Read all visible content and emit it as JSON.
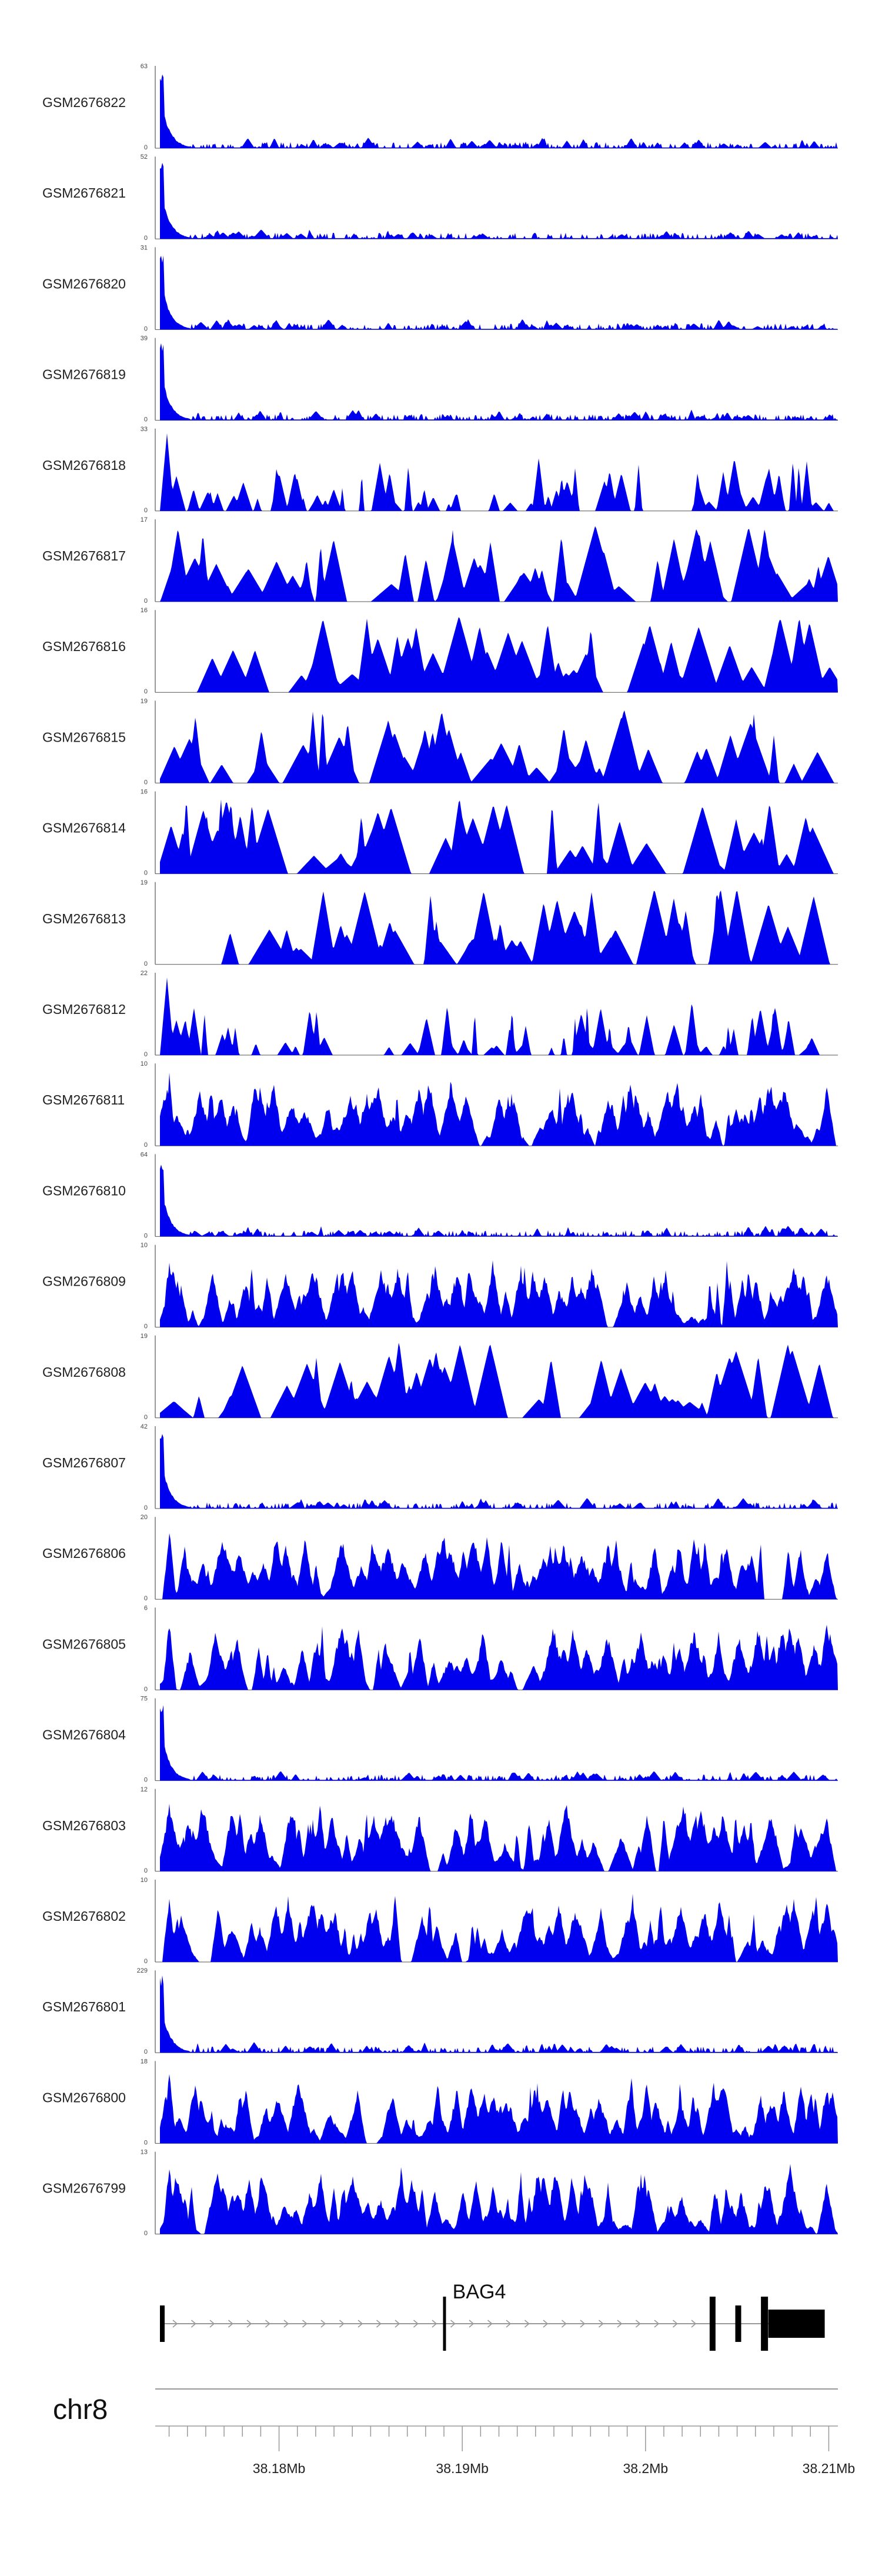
{
  "chart_data": {
    "type": "area",
    "title": "",
    "chromosome": "chr8",
    "x_range_mb": [
      38.1735,
      38.2105
    ],
    "axis": {
      "tick_labels": [
        "38.18Mb",
        "38.19Mb",
        "38.2Mb",
        "38.21Mb"
      ],
      "tick_values": [
        38.18,
        38.19,
        38.2,
        38.21
      ]
    },
    "tracks": [
      {
        "name": "GSM2676822",
        "ymax": 63,
        "ymax_label": "63",
        "ymin_label": "0",
        "pattern": "tss"
      },
      {
        "name": "GSM2676821",
        "ymax": 52,
        "ymax_label": "52",
        "ymin_label": "0",
        "pattern": "tss"
      },
      {
        "name": "GSM2676820",
        "ymax": 31,
        "ymax_label": "31",
        "ymin_label": "0",
        "pattern": "tss"
      },
      {
        "name": "GSM2676819",
        "ymax": 39,
        "ymax_label": "39",
        "ymin_label": "0",
        "pattern": "tss"
      },
      {
        "name": "GSM2676818",
        "ymax": 33,
        "ymax_label": "33",
        "ymin_label": "0",
        "pattern": "medium"
      },
      {
        "name": "GSM2676817",
        "ymax": 17,
        "ymax_label": "17",
        "ymin_label": "0",
        "pattern": "sparse"
      },
      {
        "name": "GSM2676816",
        "ymax": 16,
        "ymax_label": "16",
        "ymin_label": "0",
        "pattern": "sparse"
      },
      {
        "name": "GSM2676815",
        "ymax": 19,
        "ymax_label": "19",
        "ymin_label": "0",
        "pattern": "sparse"
      },
      {
        "name": "GSM2676814",
        "ymax": 16,
        "ymax_label": "16",
        "ymin_label": "0",
        "pattern": "sparse"
      },
      {
        "name": "GSM2676813",
        "ymax": 19,
        "ymax_label": "19",
        "ymin_label": "0",
        "pattern": "sparse"
      },
      {
        "name": "GSM2676812",
        "ymax": 22,
        "ymax_label": "22",
        "ymin_label": "0",
        "pattern": "medium"
      },
      {
        "name": "GSM2676811",
        "ymax": 10,
        "ymax_label": "10",
        "ymin_label": "0",
        "pattern": "dense"
      },
      {
        "name": "GSM2676810",
        "ymax": 64,
        "ymax_label": "64",
        "ymin_label": "0",
        "pattern": "tss"
      },
      {
        "name": "GSM2676809",
        "ymax": 10,
        "ymax_label": "10",
        "ymin_label": "0",
        "pattern": "dense"
      },
      {
        "name": "GSM2676808",
        "ymax": 19,
        "ymax_label": "19",
        "ymin_label": "0",
        "pattern": "sparse"
      },
      {
        "name": "GSM2676807",
        "ymax": 42,
        "ymax_label": "42",
        "ymin_label": "0",
        "pattern": "tss"
      },
      {
        "name": "GSM2676806",
        "ymax": 20,
        "ymax_label": "20",
        "ymin_label": "0",
        "pattern": "dense"
      },
      {
        "name": "GSM2676805",
        "ymax": 6,
        "ymax_label": "6",
        "ymin_label": "0",
        "pattern": "dense"
      },
      {
        "name": "GSM2676804",
        "ymax": 75,
        "ymax_label": "75",
        "ymin_label": "0",
        "pattern": "tss"
      },
      {
        "name": "GSM2676803",
        "ymax": 12,
        "ymax_label": "12",
        "ymin_label": "0",
        "pattern": "dense"
      },
      {
        "name": "GSM2676802",
        "ymax": 10,
        "ymax_label": "10",
        "ymin_label": "0",
        "pattern": "dense"
      },
      {
        "name": "GSM2676801",
        "ymax": 229,
        "ymax_label": "229",
        "ymin_label": "0",
        "pattern": "tss"
      },
      {
        "name": "GSM2676800",
        "ymax": 18,
        "ymax_label": "18",
        "ymin_label": "0",
        "pattern": "dense"
      },
      {
        "name": "GSM2676799",
        "ymax": 13,
        "ymax_label": "13",
        "ymin_label": "0",
        "pattern": "dense"
      }
    ],
    "gene": {
      "name": "BAG4",
      "strand": "+",
      "start_mb": 38.1735,
      "end_mb": 38.2085
    }
  },
  "colors": {
    "fill": "#0000ee",
    "axis": "#888888",
    "gene": "#000000"
  }
}
